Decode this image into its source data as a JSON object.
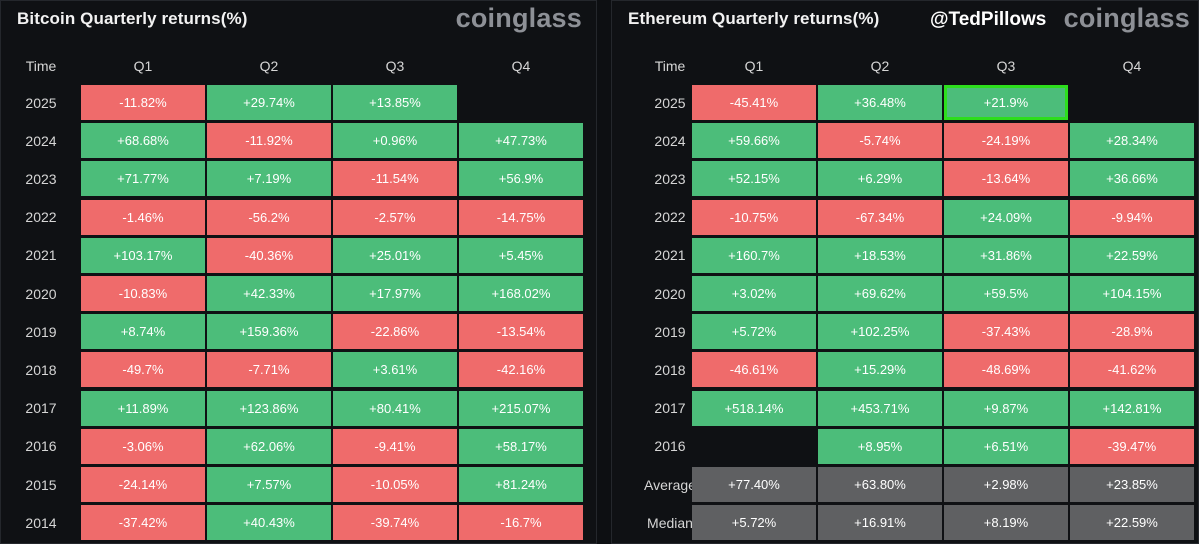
{
  "panels": {
    "btc": {
      "title": "Bitcoin Quarterly returns(%)",
      "brand": "coinglass",
      "watermark": ""
    },
    "eth": {
      "title": "Ethereum Quarterly returns(%)",
      "brand": "coinglass",
      "watermark": "@TedPillows"
    }
  },
  "colors": {
    "positive": "#4cbd7a",
    "negative": "#ef6b6b",
    "stat": "#5f6062",
    "highlight": "#2dde1d"
  },
  "chart_data": [
    {
      "type": "table",
      "title": "Bitcoin Quarterly returns(%)",
      "columns": [
        "Time",
        "Q1",
        "Q2",
        "Q3",
        "Q4"
      ],
      "rows": [
        {
          "label": "2025",
          "values": [
            "-11.82%",
            "+29.74%",
            "+13.85%",
            ""
          ]
        },
        {
          "label": "2024",
          "values": [
            "+68.68%",
            "-11.92%",
            "+0.96%",
            "+47.73%"
          ]
        },
        {
          "label": "2023",
          "values": [
            "+71.77%",
            "+7.19%",
            "-11.54%",
            "+56.9%"
          ]
        },
        {
          "label": "2022",
          "values": [
            "-1.46%",
            "-56.2%",
            "-2.57%",
            "-14.75%"
          ]
        },
        {
          "label": "2021",
          "values": [
            "+103.17%",
            "-40.36%",
            "+25.01%",
            "+5.45%"
          ]
        },
        {
          "label": "2020",
          "values": [
            "-10.83%",
            "+42.33%",
            "+17.97%",
            "+168.02%"
          ]
        },
        {
          "label": "2019",
          "values": [
            "+8.74%",
            "+159.36%",
            "-22.86%",
            "-13.54%"
          ]
        },
        {
          "label": "2018",
          "values": [
            "-49.7%",
            "-7.71%",
            "+3.61%",
            "-42.16%"
          ]
        },
        {
          "label": "2017",
          "values": [
            "+11.89%",
            "+123.86%",
            "+80.41%",
            "+215.07%"
          ]
        },
        {
          "label": "2016",
          "values": [
            "-3.06%",
            "+62.06%",
            "-9.41%",
            "+58.17%"
          ]
        },
        {
          "label": "2015",
          "values": [
            "-24.14%",
            "+7.57%",
            "-10.05%",
            "+81.24%"
          ]
        },
        {
          "label": "2014",
          "values": [
            "-37.42%",
            "+40.43%",
            "-39.74%",
            "-16.7%"
          ]
        }
      ]
    },
    {
      "type": "table",
      "title": "Ethereum Quarterly returns(%)",
      "columns": [
        "Time",
        "Q1",
        "Q2",
        "Q3",
        "Q4"
      ],
      "highlight": {
        "row": "2025",
        "column": "Q3"
      },
      "rows": [
        {
          "label": "2025",
          "values": [
            "-45.41%",
            "+36.48%",
            "+21.9%",
            ""
          ]
        },
        {
          "label": "2024",
          "values": [
            "+59.66%",
            "-5.74%",
            "-24.19%",
            "+28.34%"
          ]
        },
        {
          "label": "2023",
          "values": [
            "+52.15%",
            "+6.29%",
            "-13.64%",
            "+36.66%"
          ]
        },
        {
          "label": "2022",
          "values": [
            "-10.75%",
            "-67.34%",
            "+24.09%",
            "-9.94%"
          ]
        },
        {
          "label": "2021",
          "values": [
            "+160.7%",
            "+18.53%",
            "+31.86%",
            "+22.59%"
          ]
        },
        {
          "label": "2020",
          "values": [
            "+3.02%",
            "+69.62%",
            "+59.5%",
            "+104.15%"
          ]
        },
        {
          "label": "2019",
          "values": [
            "+5.72%",
            "+102.25%",
            "-37.43%",
            "-28.9%"
          ]
        },
        {
          "label": "2018",
          "values": [
            "-46.61%",
            "+15.29%",
            "-48.69%",
            "-41.62%"
          ]
        },
        {
          "label": "2017",
          "values": [
            "+518.14%",
            "+453.71%",
            "+9.87%",
            "+142.81%"
          ]
        },
        {
          "label": "2016",
          "values": [
            "",
            "+8.95%",
            "+6.51%",
            "-39.47%"
          ]
        },
        {
          "label": "Average",
          "stat": true,
          "values": [
            "+77.40%",
            "+63.80%",
            "+2.98%",
            "+23.85%"
          ]
        },
        {
          "label": "Median",
          "stat": true,
          "values": [
            "+5.72%",
            "+16.91%",
            "+8.19%",
            "+22.59%"
          ]
        }
      ]
    }
  ]
}
